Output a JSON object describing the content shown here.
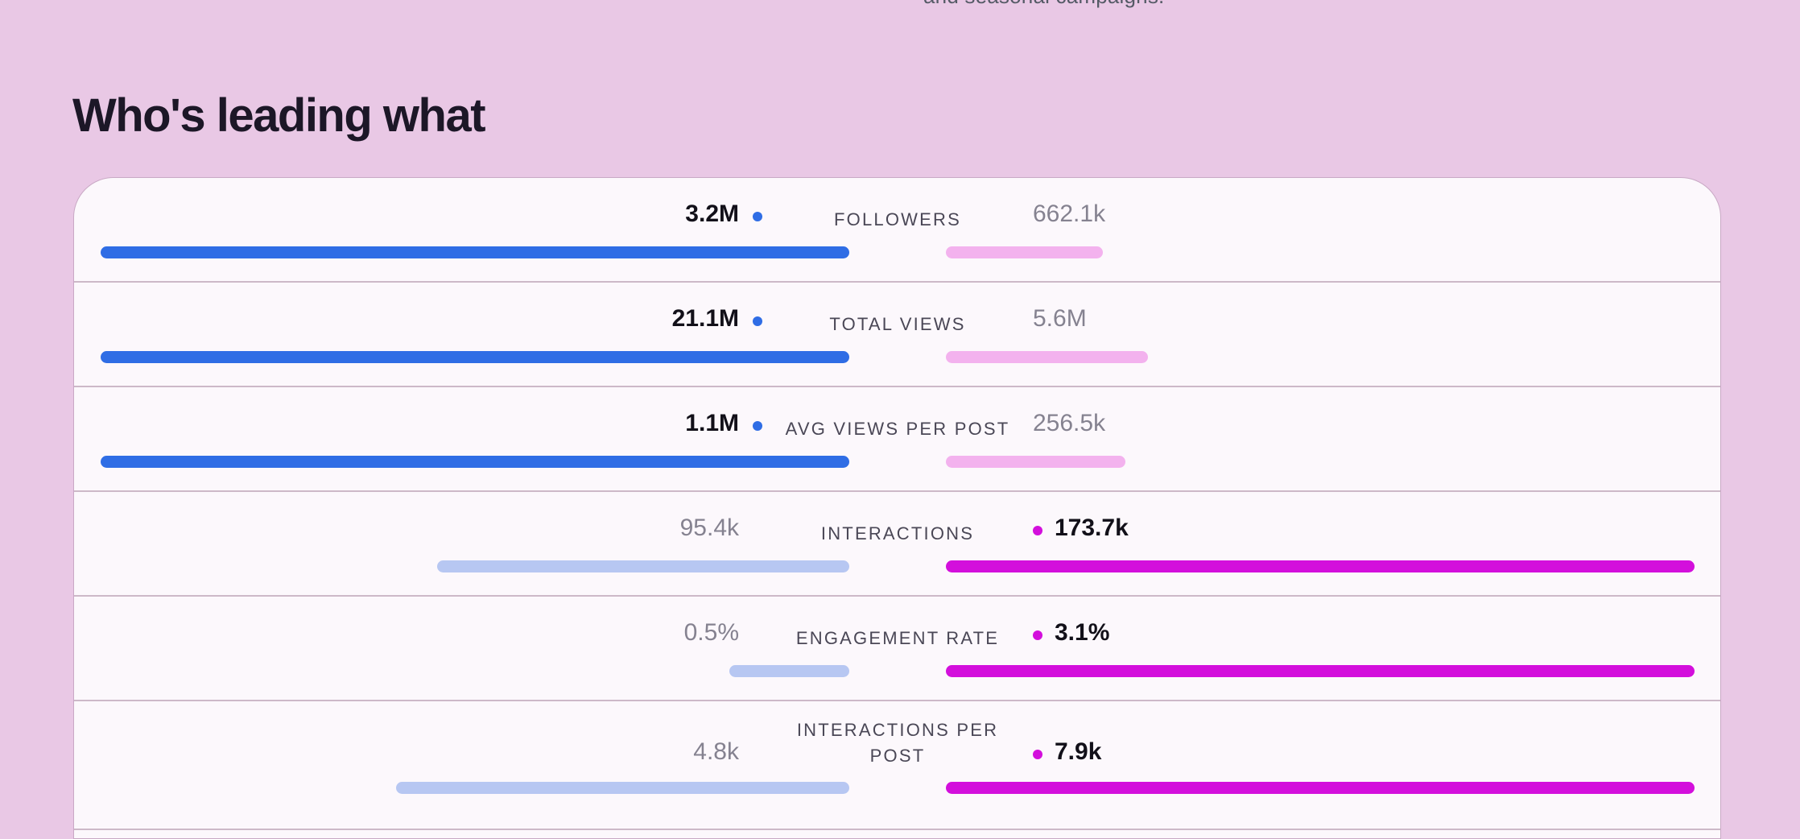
{
  "top_caption": "and seasonal campaigns.",
  "section_title": "Who's leading what",
  "colors": {
    "left_accent": "#2f6de5",
    "left_muted": "#b7c7f2",
    "right_accent": "#d30fdc",
    "right_muted": "#f3b2ee",
    "background": "#e9c8e5"
  },
  "metrics": [
    {
      "label": "FOLLOWERS",
      "left_value": "3.2M",
      "right_value": "662.1k",
      "leader": "left",
      "left_share": 1.0,
      "right_share": 0.21
    },
    {
      "label": "TOTAL VIEWS",
      "left_value": "21.1M",
      "right_value": "5.6M",
      "leader": "left",
      "left_share": 1.0,
      "right_share": 0.27
    },
    {
      "label": "AVG VIEWS PER POST",
      "left_value": "1.1M",
      "right_value": "256.5k",
      "leader": "left",
      "left_share": 1.0,
      "right_share": 0.24
    },
    {
      "label": "INTERACTIONS",
      "left_value": "95.4k",
      "right_value": "173.7k",
      "leader": "right",
      "left_share": 0.55,
      "right_share": 1.0
    },
    {
      "label": "ENGAGEMENT RATE",
      "left_value": "0.5%",
      "right_value": "3.1%",
      "leader": "right",
      "left_share": 0.16,
      "right_share": 1.0
    },
    {
      "label": "INTERACTIONS PER POST",
      "left_value": "4.8k",
      "right_value": "7.9k",
      "leader": "right",
      "left_share": 0.605,
      "right_share": 1.0
    }
  ]
}
